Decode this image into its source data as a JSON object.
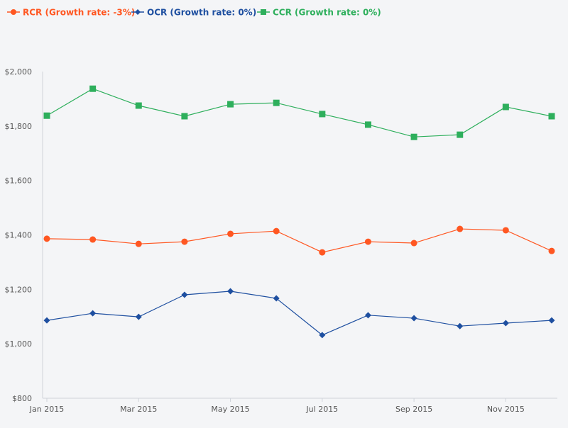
{
  "chart_data": {
    "type": "line",
    "categories": [
      "Jan 2015",
      "Feb 2015",
      "Mar 2015",
      "Apr 2015",
      "May 2015",
      "Jun 2015",
      "Jul 2015",
      "Aug 2015",
      "Sep 2015",
      "Oct 2015",
      "Nov 2015",
      "Dec 2015"
    ],
    "x_tick_labels": [
      "Jan 2015",
      "Mar 2015",
      "May 2015",
      "Jul 2015",
      "Sep 2015",
      "Nov 2015"
    ],
    "y_tick_labels": [
      "$800",
      "$1,000",
      "$1,200",
      "$1,400",
      "$1,600",
      "$1,800",
      "$2,000"
    ],
    "y_ticks": [
      800,
      1000,
      1200,
      1400,
      1600,
      1800,
      2000
    ],
    "ylim": [
      800,
      2000
    ],
    "grid": false,
    "legend_placement": "top-left",
    "series": [
      {
        "name": "RCR (Growth rate: -3%)",
        "color": "#ff5722",
        "marker": "circle",
        "values": [
          1386,
          1383,
          1367,
          1375,
          1404,
          1414,
          1336,
          1375,
          1370,
          1422,
          1417,
          1341
        ]
      },
      {
        "name": "OCR (Growth rate: 0%)",
        "color": "#1e4fa0",
        "marker": "diamond",
        "values": [
          1086,
          1112,
          1099,
          1180,
          1193,
          1167,
          1032,
          1105,
          1094,
          1065,
          1076,
          1086
        ]
      },
      {
        "name": "CCR (Growth rate: 0%)",
        "color": "#2eaf5c",
        "marker": "square",
        "values": [
          1838,
          1937,
          1875,
          1836,
          1880,
          1885,
          1844,
          1805,
          1760,
          1768,
          1870,
          1836
        ]
      }
    ]
  }
}
